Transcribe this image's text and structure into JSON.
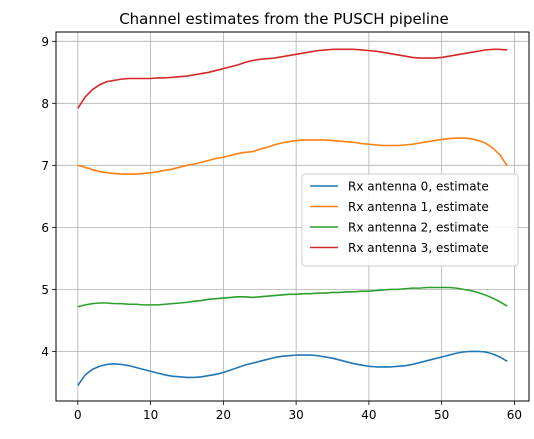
{
  "chart_data": {
    "type": "line",
    "title": "Channel estimates from the PUSCH pipeline",
    "xlabel": "",
    "ylabel": "",
    "xlim": [
      -3,
      62
    ],
    "ylim": [
      3.2,
      9.15
    ],
    "xticks": [
      0,
      10,
      20,
      30,
      40,
      50,
      60
    ],
    "yticks": [
      4,
      5,
      6,
      7,
      8,
      9
    ],
    "grid": true,
    "legend_position": "center-right",
    "series": [
      {
        "name": "Rx antenna 0, estimate",
        "color": "#1f77b4",
        "x": [
          0,
          1,
          2,
          3,
          4,
          5,
          6,
          7,
          8,
          9,
          10,
          11,
          12,
          13,
          14,
          15,
          16,
          17,
          18,
          19,
          20,
          21,
          22,
          23,
          24,
          25,
          26,
          27,
          28,
          29,
          30,
          31,
          32,
          33,
          34,
          35,
          36,
          37,
          38,
          39,
          40,
          41,
          42,
          43,
          44,
          45,
          46,
          47,
          48,
          49,
          50,
          51,
          52,
          53,
          54,
          55,
          56,
          57,
          58,
          59
        ],
        "y": [
          3.45,
          3.62,
          3.71,
          3.76,
          3.79,
          3.8,
          3.79,
          3.77,
          3.74,
          3.71,
          3.68,
          3.65,
          3.62,
          3.6,
          3.59,
          3.58,
          3.58,
          3.59,
          3.61,
          3.63,
          3.66,
          3.7,
          3.74,
          3.78,
          3.81,
          3.84,
          3.87,
          3.9,
          3.92,
          3.93,
          3.94,
          3.94,
          3.94,
          3.93,
          3.91,
          3.89,
          3.86,
          3.83,
          3.8,
          3.78,
          3.76,
          3.75,
          3.75,
          3.75,
          3.76,
          3.77,
          3.79,
          3.82,
          3.85,
          3.88,
          3.91,
          3.94,
          3.97,
          3.99,
          4.0,
          4.0,
          3.99,
          3.96,
          3.91,
          3.84
        ]
      },
      {
        "name": "Rx antenna 1, estimate",
        "color": "#ff7f0e",
        "x": [
          0,
          1,
          2,
          3,
          4,
          5,
          6,
          7,
          8,
          9,
          10,
          11,
          12,
          13,
          14,
          15,
          16,
          17,
          18,
          19,
          20,
          21,
          22,
          23,
          24,
          25,
          26,
          27,
          28,
          29,
          30,
          31,
          32,
          33,
          34,
          35,
          36,
          37,
          38,
          39,
          40,
          41,
          42,
          43,
          44,
          45,
          46,
          47,
          48,
          49,
          50,
          51,
          52,
          53,
          54,
          55,
          56,
          57,
          58,
          59
        ],
        "y": [
          7.0,
          6.97,
          6.93,
          6.9,
          6.88,
          6.87,
          6.86,
          6.86,
          6.86,
          6.87,
          6.88,
          6.9,
          6.92,
          6.94,
          6.97,
          7.0,
          7.02,
          7.05,
          7.08,
          7.11,
          7.13,
          7.16,
          7.19,
          7.21,
          7.22,
          7.26,
          7.29,
          7.33,
          7.36,
          7.38,
          7.4,
          7.41,
          7.41,
          7.41,
          7.41,
          7.4,
          7.39,
          7.38,
          7.37,
          7.35,
          7.34,
          7.33,
          7.32,
          7.32,
          7.32,
          7.33,
          7.34,
          7.36,
          7.38,
          7.4,
          7.42,
          7.43,
          7.44,
          7.44,
          7.43,
          7.4,
          7.36,
          7.28,
          7.17,
          6.99
        ]
      },
      {
        "name": "Rx antenna 2, estimate",
        "color": "#2ca02c",
        "x": [
          0,
          1,
          2,
          3,
          4,
          5,
          6,
          7,
          8,
          9,
          10,
          11,
          12,
          13,
          14,
          15,
          16,
          17,
          18,
          19,
          20,
          21,
          22,
          23,
          24,
          25,
          26,
          27,
          28,
          29,
          30,
          31,
          32,
          33,
          34,
          35,
          36,
          37,
          38,
          39,
          40,
          41,
          42,
          43,
          44,
          45,
          46,
          47,
          48,
          49,
          50,
          51,
          52,
          53,
          54,
          55,
          56,
          57,
          58,
          59
        ],
        "y": [
          4.72,
          4.75,
          4.77,
          4.78,
          4.78,
          4.77,
          4.77,
          4.76,
          4.76,
          4.75,
          4.75,
          4.75,
          4.76,
          4.77,
          4.78,
          4.79,
          4.81,
          4.82,
          4.84,
          4.85,
          4.86,
          4.87,
          4.88,
          4.88,
          4.87,
          4.88,
          4.89,
          4.9,
          4.91,
          4.92,
          4.92,
          4.93,
          4.93,
          4.94,
          4.94,
          4.95,
          4.95,
          4.96,
          4.96,
          4.97,
          4.97,
          4.98,
          4.99,
          5.0,
          5.0,
          5.01,
          5.02,
          5.02,
          5.03,
          5.03,
          5.03,
          5.03,
          5.02,
          5.0,
          4.98,
          4.95,
          4.91,
          4.86,
          4.8,
          4.73
        ]
      },
      {
        "name": "Rx antenna 3, estimate",
        "color": "#d62728",
        "x": [
          0,
          1,
          2,
          3,
          4,
          5,
          6,
          7,
          8,
          9,
          10,
          11,
          12,
          13,
          14,
          15,
          16,
          17,
          18,
          19,
          20,
          21,
          22,
          23,
          24,
          25,
          26,
          27,
          28,
          29,
          30,
          31,
          32,
          33,
          34,
          35,
          36,
          37,
          38,
          39,
          40,
          41,
          42,
          43,
          44,
          45,
          46,
          47,
          48,
          49,
          50,
          51,
          52,
          53,
          54,
          55,
          56,
          57,
          58,
          59
        ],
        "y": [
          7.92,
          8.1,
          8.22,
          8.3,
          8.35,
          8.37,
          8.39,
          8.4,
          8.4,
          8.4,
          8.4,
          8.41,
          8.41,
          8.42,
          8.43,
          8.44,
          8.46,
          8.48,
          8.5,
          8.53,
          8.56,
          8.59,
          8.62,
          8.66,
          8.69,
          8.71,
          8.72,
          8.73,
          8.75,
          8.77,
          8.79,
          8.81,
          8.83,
          8.85,
          8.86,
          8.87,
          8.87,
          8.87,
          8.87,
          8.86,
          8.85,
          8.84,
          8.82,
          8.8,
          8.78,
          8.76,
          8.74,
          8.73,
          8.73,
          8.73,
          8.74,
          8.76,
          8.78,
          8.8,
          8.82,
          8.84,
          8.86,
          8.87,
          8.87,
          8.86
        ]
      }
    ]
  }
}
